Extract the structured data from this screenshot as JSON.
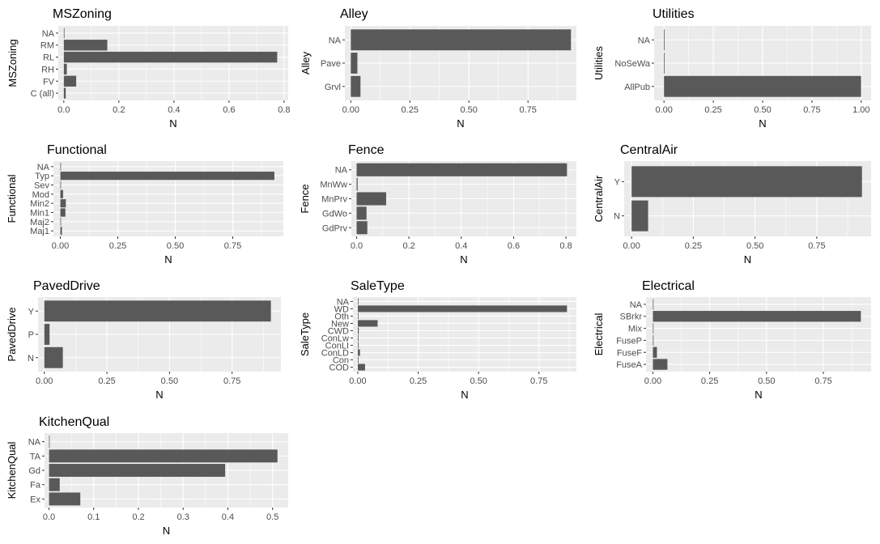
{
  "chart_data": [
    {
      "type": "bar",
      "orientation": "horizontal",
      "title": "MSZoning",
      "ylabel": "MSZoning",
      "xlabel": "N",
      "categories": [
        "C (all)",
        "FV",
        "RH",
        "RL",
        "RM",
        "NA"
      ],
      "values": [
        0.007,
        0.045,
        0.011,
        0.775,
        0.158,
        0.001
      ],
      "xlim": [
        -0.02,
        0.815
      ],
      "xticks": [
        0,
        0.2,
        0.4,
        0.6,
        0.8
      ],
      "xtick_labels": [
        "0.0",
        "0.2",
        "0.4",
        "0.6",
        "0.8"
      ]
    },
    {
      "type": "bar",
      "orientation": "horizontal",
      "title": "Alley",
      "ylabel": "Alley",
      "xlabel": "N",
      "categories": [
        "Grvl",
        "Pave",
        "NA"
      ],
      "values": [
        0.041,
        0.028,
        0.932
      ],
      "xlim": [
        -0.025,
        0.955
      ],
      "xticks": [
        0,
        0.25,
        0.5,
        0.75
      ],
      "xtick_labels": [
        "0.00",
        "0.25",
        "0.50",
        "0.75"
      ]
    },
    {
      "type": "bar",
      "orientation": "horizontal",
      "title": "Utilities",
      "ylabel": "Utilities",
      "xlabel": "N",
      "categories": [
        "AllPub",
        "NoSeWa",
        "NA"
      ],
      "values": [
        0.999,
        0.0005,
        0.0005
      ],
      "xlim": [
        -0.05,
        1.05
      ],
      "xticks": [
        0,
        0.25,
        0.5,
        0.75,
        1
      ],
      "xtick_labels": [
        "0.00",
        "0.25",
        "0.50",
        "0.75",
        "1.00"
      ]
    },
    {
      "type": "bar",
      "orientation": "horizontal",
      "title": "Functional",
      "ylabel": "Functional",
      "xlabel": "N",
      "categories": [
        "Maj1",
        "Maj2",
        "Min1",
        "Min2",
        "Mod",
        "Sev",
        "Typ",
        "NA"
      ],
      "values": [
        0.007,
        0.003,
        0.022,
        0.024,
        0.012,
        0.001,
        0.931,
        0.001
      ],
      "xlim": [
        -0.03,
        0.97
      ],
      "xticks": [
        0,
        0.25,
        0.5,
        0.75
      ],
      "xtick_labels": [
        "0.00",
        "0.25",
        "0.50",
        "0.75"
      ]
    },
    {
      "type": "bar",
      "orientation": "horizontal",
      "title": "Fence",
      "ylabel": "Fence",
      "xlabel": "N",
      "categories": [
        "GdPrv",
        "GdWo",
        "MnPrv",
        "MnWw",
        "NA"
      ],
      "values": [
        0.041,
        0.038,
        0.113,
        0.004,
        0.804
      ],
      "xlim": [
        -0.02,
        0.84
      ],
      "xticks": [
        0,
        0.2,
        0.4,
        0.6,
        0.8
      ],
      "xtick_labels": [
        "0.0",
        "0.2",
        "0.4",
        "0.6",
        "0.8"
      ]
    },
    {
      "type": "bar",
      "orientation": "horizontal",
      "title": "CentralAir",
      "ylabel": "CentralAir",
      "xlabel": "N",
      "categories": [
        "N",
        "Y"
      ],
      "values": [
        0.067,
        0.933
      ],
      "xlim": [
        -0.03,
        0.97
      ],
      "xticks": [
        0,
        0.25,
        0.5,
        0.75
      ],
      "xtick_labels": [
        "0.00",
        "0.25",
        "0.50",
        "0.75"
      ]
    },
    {
      "type": "bar",
      "orientation": "horizontal",
      "title": "PavedDrive",
      "ylabel": "PavedDrive",
      "xlabel": "N",
      "categories": [
        "N",
        "P",
        "Y"
      ],
      "values": [
        0.074,
        0.021,
        0.905
      ],
      "xlim": [
        -0.025,
        0.945
      ],
      "xticks": [
        0,
        0.25,
        0.5,
        0.75
      ],
      "xtick_labels": [
        "0.00",
        "0.25",
        "0.50",
        "0.75"
      ]
    },
    {
      "type": "bar",
      "orientation": "horizontal",
      "title": "SaleType",
      "ylabel": "SaleType",
      "xlabel": "N",
      "categories": [
        "COD",
        "Con",
        "ConLD",
        "ConLI",
        "ConLw",
        "CWD",
        "New",
        "Oth",
        "WD",
        "NA"
      ],
      "values": [
        0.03,
        0.002,
        0.009,
        0.003,
        0.003,
        0.004,
        0.082,
        0.002,
        0.866,
        0.0005
      ],
      "xlim": [
        -0.02,
        0.905
      ],
      "xticks": [
        0,
        0.25,
        0.5,
        0.75
      ],
      "xtick_labels": [
        "0.00",
        "0.25",
        "0.50",
        "0.75"
      ]
    },
    {
      "type": "bar",
      "orientation": "horizontal",
      "title": "Electrical",
      "ylabel": "Electrical",
      "xlabel": "N",
      "categories": [
        "FuseA",
        "FuseF",
        "FuseP",
        "Mix",
        "SBrkr",
        "NA"
      ],
      "values": [
        0.064,
        0.018,
        0.003,
        0.0005,
        0.915,
        0.0005
      ],
      "xlim": [
        -0.03,
        0.96
      ],
      "xticks": [
        0,
        0.25,
        0.5,
        0.75
      ],
      "xtick_labels": [
        "0.00",
        "0.25",
        "0.50",
        "0.75"
      ]
    },
    {
      "type": "bar",
      "orientation": "horizontal",
      "title": "KitchenQual",
      "ylabel": "KitchenQual",
      "xlabel": "N",
      "categories": [
        "Ex",
        "Fa",
        "Gd",
        "TA",
        "NA"
      ],
      "values": [
        0.07,
        0.024,
        0.394,
        0.511,
        0.0005
      ],
      "xlim": [
        -0.01,
        0.535
      ],
      "xticks": [
        0,
        0.1,
        0.2,
        0.3,
        0.4,
        0.5
      ],
      "xtick_labels": [
        "0.0",
        "0.1",
        "0.2",
        "0.3",
        "0.4",
        "0.5"
      ]
    }
  ]
}
